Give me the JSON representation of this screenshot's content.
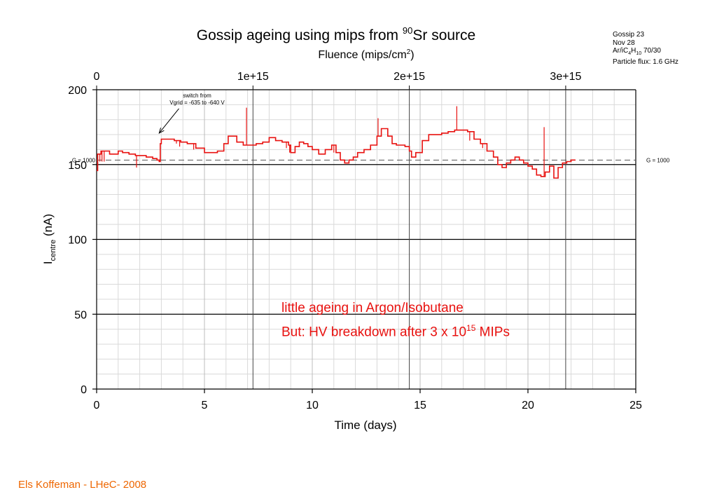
{
  "info": {
    "line1": "Gossip 23",
    "line2": "Nov 28",
    "gas_a": "Ar/iC",
    "gas_s1": "4",
    "gas_b": "H",
    "gas_s2": "10",
    "gas_c": " 70/30",
    "line4": "Particle flux: 1.6 GHz"
  },
  "annotation": {
    "line1": "little ageing in Argon/Isobutane",
    "line2_a": "But: HV breakdown after 3 x 10",
    "line2_sup": "15",
    "line2_b": " MIPs"
  },
  "footer": "Els Koffeman - LHeC- 2008",
  "chart_data": {
    "type": "line",
    "title": "Gossip ageing using mips from 90Sr source",
    "title_a": "Gossip ageing using mips from ",
    "title_sup": "90",
    "title_b": "Sr source",
    "xlabel": "Time (days)",
    "ylabel_a": "I",
    "ylabel_sub": "centre",
    "ylabel_b": " (nA)",
    "x2label_a": "Fluence (mips/cm",
    "x2label_sup": "2",
    "x2label_b": ")",
    "xlim": [
      0,
      25
    ],
    "ylim": [
      0,
      200
    ],
    "xticks": [
      "0",
      "5",
      "10",
      "15",
      "20",
      "25"
    ],
    "yticks": [
      "0",
      "50",
      "100",
      "150",
      "200"
    ],
    "x2ticks": [
      {
        "label": "0",
        "day": 0
      },
      {
        "label": "1e+15",
        "day": 7.25
      },
      {
        "label": "2e+15",
        "day": 14.5
      },
      {
        "label": "3e+15",
        "day": 21.75
      }
    ],
    "grid": true,
    "reference_line": {
      "y": 153,
      "label_left": "G = 1000",
      "label_right": "G = 1000"
    },
    "arrow_note": {
      "line1": "switch from",
      "line2": "Vgrid = -635 to -640 V",
      "tip_x": 2.9,
      "tip_y": 171,
      "text_x": 4.4,
      "text_y": 193
    },
    "color": "#e8110f",
    "series": [
      {
        "x": [
          0,
          0.05,
          0.1,
          0.2,
          0.4,
          0.6,
          0.8,
          1.0,
          1.2,
          1.5,
          1.8,
          2.0,
          2.3,
          2.6,
          2.8,
          2.9,
          2.95,
          3.0,
          3.3,
          3.6,
          3.9,
          4.2,
          4.6,
          5.0,
          5.3,
          5.6,
          5.9,
          6.1,
          6.3,
          6.5,
          6.8,
          7.1,
          7.4,
          7.7,
          8.0,
          8.3,
          8.6,
          8.9,
          9.0,
          9.2,
          9.4,
          9.6,
          9.8,
          10.0,
          10.3,
          10.6,
          10.9,
          11.1,
          11.3,
          11.5,
          11.7,
          11.9,
          12.1,
          12.4,
          12.7,
          13.0,
          13.2,
          13.3,
          13.5,
          13.7,
          13.9,
          14.1,
          14.3,
          14.5,
          14.6,
          14.8,
          15.1,
          15.4,
          15.7,
          16.0,
          16.3,
          16.6,
          16.9,
          17.2,
          17.5,
          17.8,
          18.1,
          18.4,
          18.6,
          18.8,
          19.0,
          19.2,
          19.4,
          19.6,
          19.8,
          20.0,
          20.2,
          20.4,
          20.6,
          20.8,
          21.0,
          21.2,
          21.4,
          21.6,
          21.8,
          22.0,
          22.2
        ],
        "y": [
          146,
          157,
          157,
          159,
          159,
          157,
          157,
          159,
          158,
          157,
          156,
          156,
          155,
          154,
          153,
          152,
          164,
          167,
          167,
          166,
          165,
          164,
          161,
          158,
          158,
          159,
          164,
          169,
          169,
          165,
          163,
          163,
          164,
          165,
          168,
          166,
          165,
          163,
          158,
          162,
          165,
          164,
          162,
          160,
          157,
          160,
          163,
          158,
          153,
          151,
          153,
          155,
          158,
          160,
          163,
          169,
          174,
          174,
          169,
          164,
          163,
          163,
          162,
          159,
          155,
          158,
          166,
          170,
          170,
          171,
          172,
          173,
          173,
          172,
          167,
          164,
          159,
          155,
          150,
          148,
          151,
          153,
          155,
          153,
          151,
          149,
          147,
          143,
          142,
          145,
          149,
          141,
          148,
          151,
          152,
          153,
          153
        ]
      }
    ],
    "spikes": [
      {
        "x": 0.15,
        "y": 152
      },
      {
        "x": 0.25,
        "y": 152
      },
      {
        "x": 0.35,
        "y": 152
      },
      {
        "x": 1.85,
        "y": 148
      },
      {
        "x": 3.7,
        "y": 164
      },
      {
        "x": 3.85,
        "y": 162
      },
      {
        "x": 4.5,
        "y": 160
      },
      {
        "x": 6.95,
        "y": 188
      },
      {
        "x": 8.8,
        "y": 161
      },
      {
        "x": 8.95,
        "y": 158
      },
      {
        "x": 11.0,
        "y": 158
      },
      {
        "x": 13.05,
        "y": 181
      },
      {
        "x": 16.7,
        "y": 189
      },
      {
        "x": 17.3,
        "y": 166
      },
      {
        "x": 17.9,
        "y": 161
      },
      {
        "x": 20.75,
        "y": 175
      },
      {
        "x": 21.35,
        "y": 141
      }
    ]
  }
}
